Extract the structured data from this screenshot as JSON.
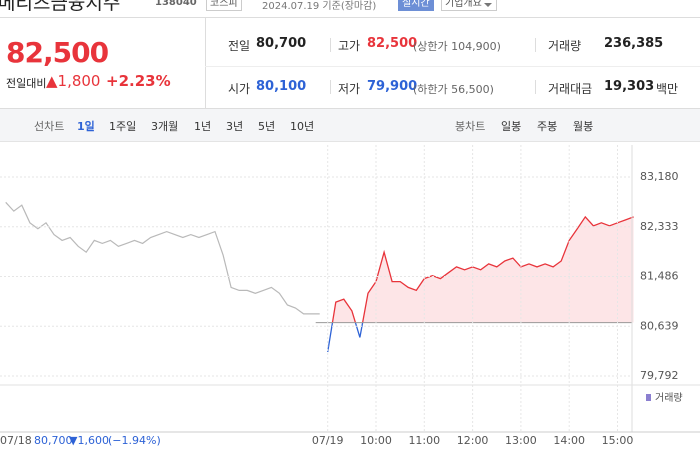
{
  "header": {
    "name": "메리츠금융지주",
    "code": "138040",
    "market": "코스피",
    "date": "2024.07.19 기준(장마감)",
    "realtime": "실시간",
    "company": "기업개요"
  },
  "quote": {
    "price": "82,500",
    "change_label": "전일대비",
    "change": "▲1,800",
    "rate": "+2.23%"
  },
  "stats": [
    {
      "label": "전일",
      "value": "80,700"
    },
    {
      "label": "고가",
      "value": "82,500",
      "extra": "(상한가 104,900)"
    },
    {
      "label": "거래량",
      "value": "236,385"
    },
    {
      "label": "시가",
      "value": "80,100"
    },
    {
      "label": "저가",
      "value": "79,900",
      "extra": "(하한가 56,500)"
    },
    {
      "label": "거래대금",
      "value": "19,303",
      "unit": "백만"
    }
  ],
  "tabs": {
    "line": "선차트",
    "periods": [
      "1일",
      "1주일",
      "3개월",
      "1년",
      "3년",
      "5년",
      "10년"
    ],
    "candle": "봉차트",
    "candle_periods": [
      "일봉",
      "주봉",
      "월봉"
    ]
  },
  "chart_data": {
    "type": "line",
    "categories": [
      "07/18",
      null,
      null,
      null,
      null,
      null,
      null,
      null,
      null,
      null,
      null,
      null,
      null,
      null,
      null,
      null,
      null,
      null,
      null,
      null,
      null,
      null,
      null,
      null,
      null,
      null,
      null,
      null,
      null,
      null,
      null,
      null,
      null,
      null,
      null,
      null,
      null,
      null,
      null,
      null,
      "07/19",
      null,
      null,
      null,
      null,
      null,
      "10:00",
      null,
      null,
      null,
      null,
      null,
      "11:00",
      null,
      null,
      null,
      null,
      null,
      "12:00",
      null,
      null,
      null,
      null,
      null,
      "13:00",
      null,
      null,
      null,
      null,
      null,
      "14:00",
      null,
      null,
      null,
      null,
      null,
      "15:00",
      null,
      null
    ],
    "series": [
      {
        "color": "#b9b9b9",
        "values": [
          82750,
          82600,
          82700,
          82400,
          82300,
          82400,
          82200,
          82100,
          82150,
          82000,
          81900,
          82100,
          82050,
          82100,
          82000,
          82050,
          82100,
          82050,
          82150,
          82200,
          82250,
          82200,
          82150,
          82200,
          82150,
          82200,
          82250,
          81850,
          81300,
          81250,
          81250,
          81200,
          81250,
          81300,
          81200,
          81000,
          80950,
          80850,
          80850,
          80850,
          null,
          null,
          null,
          null,
          null,
          null,
          null,
          null,
          null,
          null,
          null,
          null,
          null,
          null,
          null,
          null,
          null,
          null,
          null,
          null,
          null,
          null,
          null,
          null,
          null,
          null,
          null,
          null,
          null,
          null,
          null,
          null,
          null,
          null,
          null,
          null,
          null,
          null,
          null
        ]
      },
      {
        "color": "#e8343b",
        "below_color": "#2d62d6",
        "fill": "#fde5e7",
        "values": [
          null,
          null,
          null,
          null,
          null,
          null,
          null,
          null,
          null,
          null,
          null,
          null,
          null,
          null,
          null,
          null,
          null,
          null,
          null,
          null,
          null,
          null,
          null,
          null,
          null,
          null,
          null,
          null,
          null,
          null,
          null,
          null,
          null,
          null,
          null,
          null,
          null,
          null,
          null,
          null,
          80200,
          81050,
          81100,
          80900,
          80450,
          81200,
          81400,
          81900,
          81400,
          81400,
          81300,
          81250,
          81450,
          81500,
          81450,
          81550,
          81650,
          81600,
          81650,
          81600,
          81700,
          81650,
          81750,
          81800,
          81650,
          81700,
          81650,
          81700,
          81650,
          81750,
          82100,
          82300,
          82500,
          82350,
          82400,
          82350,
          82400,
          82450,
          82500
        ]
      }
    ],
    "baseline": 80700,
    "ylim": [
      79792,
      83180
    ],
    "yticks": [
      {
        "value": 79792,
        "label": "79,792"
      },
      {
        "value": 80639,
        "label": "80,639"
      },
      {
        "value": 81486,
        "label": "81,486"
      },
      {
        "value": 82333,
        "label": "82,333"
      },
      {
        "value": 83180,
        "label": "83,180"
      }
    ],
    "grid": true,
    "volume_label": "거래량",
    "footer": {
      "close": "80,700",
      "change": "▼1,600",
      "rate": "(−1.94%)"
    }
  }
}
